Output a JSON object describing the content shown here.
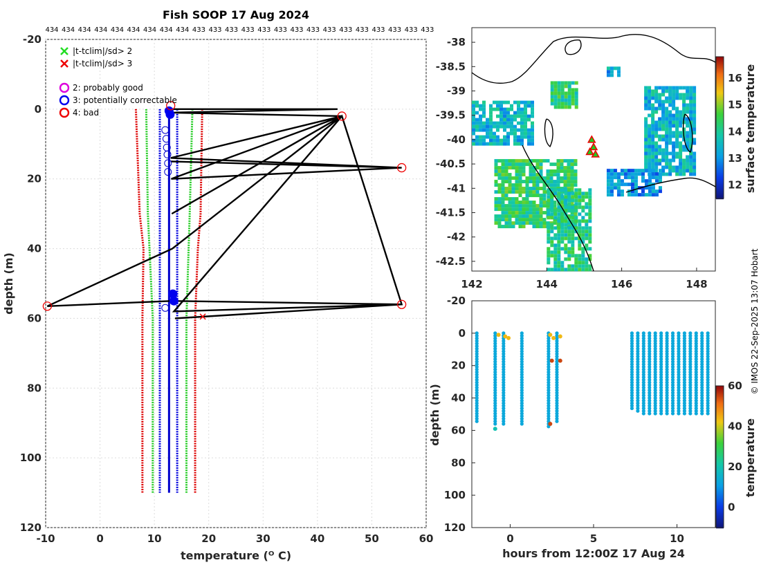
{
  "figure": {
    "title": "Fish SOOP 17 Aug 2024",
    "credit": "© IMOS 22-Sep-2025 13:07 Hobart"
  },
  "top_labels": [
    "434",
    "434",
    "434",
    "434",
    "434",
    "434",
    "434",
    "434",
    "434",
    "433",
    "433",
    "433",
    "433",
    "433",
    "433",
    "433",
    "433",
    "433",
    "433",
    "433",
    "433",
    "433",
    "433",
    "433"
  ],
  "legend": {
    "flag_markers": [
      {
        "label": "|t-tclim|/sd> 2",
        "color": "#22dd22",
        "symbol": "x"
      },
      {
        "label": "|t-tclim|/sd> 3",
        "color": "#ee0000",
        "symbol": "x"
      }
    ],
    "qc_markers": [
      {
        "label": "2: probably good",
        "color": "#dd00dd",
        "symbol": "circle"
      },
      {
        "label": "3: potentially correctable",
        "color": "#0000ee",
        "symbol": "circle"
      },
      {
        "label": "4: bad",
        "color": "#ee0000",
        "symbol": "circle"
      }
    ]
  },
  "chart_data": [
    {
      "id": "profile",
      "type": "line",
      "xlabel": "temperature (ᴼ C)",
      "ylabel": "depth (m)",
      "xlim": [
        -10,
        60
      ],
      "ylim": [
        -20,
        120
      ],
      "y_reversed": true,
      "grid": true,
      "xticks": [
        "-10",
        "0",
        "10",
        "20",
        "30",
        "40",
        "50",
        "60"
      ],
      "yticks": [
        "-20",
        "0",
        "20",
        "40",
        "60",
        "80",
        "100",
        "120"
      ],
      "climatology_envelopes": [
        {
          "name": "mean ±1 sd",
          "color": "#0000dd",
          "depth": [
            0,
            110
          ],
          "lower": [
            11.0,
            11.0
          ],
          "upper": [
            14.2,
            14.2
          ]
        },
        {
          "name": "mean ±2 sd",
          "color": "#22cc22",
          "depth": [
            0,
            30,
            60,
            110
          ],
          "lower": [
            8.5,
            8.8,
            9.7,
            9.7
          ],
          "upper": [
            17.0,
            16.5,
            15.9,
            15.9
          ]
        },
        {
          "name": "mean ±3 sd",
          "color": "#dd0000",
          "depth": [
            0,
            30,
            40,
            60,
            110
          ],
          "lower": [
            6.6,
            7.3,
            8.0,
            7.8,
            7.8
          ],
          "upper": [
            18.8,
            18.5,
            18.0,
            17.5,
            17.5
          ]
        }
      ],
      "clean_profile": {
        "color": "#0000cc",
        "temperature": [
          12.7,
          12.7
        ],
        "depth": [
          0,
          110
        ]
      },
      "raw_trace": {
        "color": "#000000",
        "temperature": [
          12.9,
          43.7,
          12.9,
          44.5,
          13.0,
          55.5,
          13.0,
          55.5,
          13.1,
          44.5,
          13.2,
          44.5,
          13.3,
          -9.7,
          13.4,
          55.5,
          13.6,
          44.5,
          55.5,
          13.8,
          13.9
        ],
        "depth": [
          0.0,
          0.0,
          1.0,
          2.0,
          14.0,
          16.8,
          15.0,
          16.8,
          20.0,
          2.0,
          30.0,
          2.0,
          40.0,
          56.5,
          55.0,
          56.0,
          58.0,
          2.0,
          56.0,
          60.0,
          60.0
        ]
      },
      "bad_points": [
        {
          "temperature": 44.5,
          "depth": 2.0
        },
        {
          "temperature": 55.5,
          "depth": 16.8
        },
        {
          "temperature": -9.7,
          "depth": 56.5
        },
        {
          "temperature": 55.5,
          "depth": 56.0
        },
        {
          "temperature": 13.0,
          "depth": -1.0
        }
      ],
      "correctable_points": [
        {
          "temperature": 12.7,
          "depth": 0.5
        },
        {
          "temperature": 12.9,
          "depth": 1.5
        },
        {
          "temperature": 13.4,
          "depth": 53.0
        },
        {
          "temperature": 13.6,
          "depth": 55.0
        }
      ],
      "open_circle_points": [
        {
          "temperature": 12.0,
          "depth": 6.0
        },
        {
          "temperature": 12.2,
          "depth": 8.5
        },
        {
          "temperature": 12.3,
          "depth": 11.0
        },
        {
          "temperature": 12.4,
          "depth": 13.0
        },
        {
          "temperature": 12.5,
          "depth": 15.5
        },
        {
          "temperature": 12.5,
          "depth": 18.0
        },
        {
          "temperature": 12.0,
          "depth": 57.0
        }
      ],
      "flag_points": [
        {
          "temperature": 18.9,
          "depth": 59.5,
          "color": "#ee0000"
        }
      ]
    },
    {
      "id": "sst-map",
      "type": "heatmap",
      "xlim": [
        142,
        148.5
      ],
      "ylim": [
        -42.7,
        -37.7
      ],
      "xticks": [
        "142",
        "144",
        "146",
        "148"
      ],
      "yticks": [
        "-38",
        "-38.5",
        "-39",
        "-39.5",
        "-40",
        "-40.5",
        "-41",
        "-41.5",
        "-42",
        "-42.5"
      ],
      "colorbar": {
        "label": "surface temperature",
        "range": [
          11.5,
          16.8
        ],
        "ticks": [
          "12",
          "13",
          "14",
          "15",
          "16"
        ]
      },
      "patches": [
        {
          "lon": [
            142.0,
            143.6
          ],
          "lat": [
            -39.2,
            -40.1
          ],
          "value": 13.5
        },
        {
          "lon": [
            142.6,
            144.8
          ],
          "lat": [
            -40.4,
            -41.8
          ],
          "value": 14.3
        },
        {
          "lon": [
            144.0,
            145.2
          ],
          "lat": [
            -41.0,
            -42.7
          ],
          "value": 14.1
        },
        {
          "lon": [
            146.6,
            147.9
          ],
          "lat": [
            -38.9,
            -40.7
          ],
          "value": 13.5
        },
        {
          "lon": [
            145.6,
            147.0
          ],
          "lat": [
            -40.6,
            -41.1
          ],
          "value": 13.0
        },
        {
          "lon": [
            144.1,
            144.8
          ],
          "lat": [
            -38.8,
            -39.3
          ],
          "value": 14.2
        },
        {
          "lon": [
            145.6,
            145.9
          ],
          "lat": [
            -38.5,
            -38.7
          ],
          "value": 13.3
        }
      ],
      "stations": [
        {
          "lon": 145.2,
          "lat": -40.0
        },
        {
          "lon": 145.25,
          "lat": -40.15
        },
        {
          "lon": 145.3,
          "lat": -40.3
        },
        {
          "lon": 145.15,
          "lat": -40.25
        }
      ]
    },
    {
      "id": "section",
      "type": "scatter",
      "xlabel": "hours from 12:00Z 17 Aug 24",
      "ylabel": "depth (m)",
      "xlim": [
        -2.3,
        12.3
      ],
      "ylim": [
        -20,
        120
      ],
      "y_reversed": true,
      "xticks": [
        "0",
        "5",
        "10"
      ],
      "yticks": [
        "-20",
        "0",
        "20",
        "40",
        "60",
        "80",
        "100",
        "120"
      ],
      "colorbar": {
        "label": "temperature",
        "range": [
          -10,
          60
        ],
        "ticks": [
          "0",
          "20",
          "40",
          "60"
        ]
      },
      "casts": [
        {
          "hour": -2.0,
          "max_depth": 56
        },
        {
          "hour": -0.9,
          "max_depth": 57
        },
        {
          "hour": -0.4,
          "max_depth": 57
        },
        {
          "hour": 0.7,
          "max_depth": 57
        },
        {
          "hour": 2.3,
          "max_depth": 58
        },
        {
          "hour": 2.8,
          "max_depth": 55
        },
        {
          "hour": 7.3,
          "max_depth": 48
        },
        {
          "hour": 7.65,
          "max_depth": 49
        },
        {
          "hour": 8.0,
          "max_depth": 50
        },
        {
          "hour": 8.35,
          "max_depth": 50
        },
        {
          "hour": 8.7,
          "max_depth": 51
        },
        {
          "hour": 9.05,
          "max_depth": 50
        },
        {
          "hour": 9.4,
          "max_depth": 51
        },
        {
          "hour": 9.75,
          "max_depth": 50
        },
        {
          "hour": 10.1,
          "max_depth": 51
        },
        {
          "hour": 10.45,
          "max_depth": 50
        },
        {
          "hour": 10.8,
          "max_depth": 51
        },
        {
          "hour": 11.15,
          "max_depth": 50
        },
        {
          "hour": 11.5,
          "max_depth": 51
        },
        {
          "hour": 11.85,
          "max_depth": 51
        }
      ],
      "typical_temperature": 13,
      "anomalies": [
        {
          "hour": -0.7,
          "depth": 1,
          "temperature": 44
        },
        {
          "hour": -0.3,
          "depth": 2,
          "temperature": 44
        },
        {
          "hour": -0.1,
          "depth": 3,
          "temperature": 44
        },
        {
          "hour": 2.4,
          "depth": 1,
          "temperature": 44
        },
        {
          "hour": 2.6,
          "depth": 3,
          "temperature": 44
        },
        {
          "hour": 3.0,
          "depth": 2,
          "temperature": 44
        },
        {
          "hour": 2.5,
          "depth": 17,
          "temperature": 55
        },
        {
          "hour": 3.0,
          "depth": 17,
          "temperature": 55
        },
        {
          "hour": 2.4,
          "depth": 56,
          "temperature": 55
        },
        {
          "hour": -0.9,
          "depth": 59,
          "temperature": 20
        }
      ]
    }
  ]
}
